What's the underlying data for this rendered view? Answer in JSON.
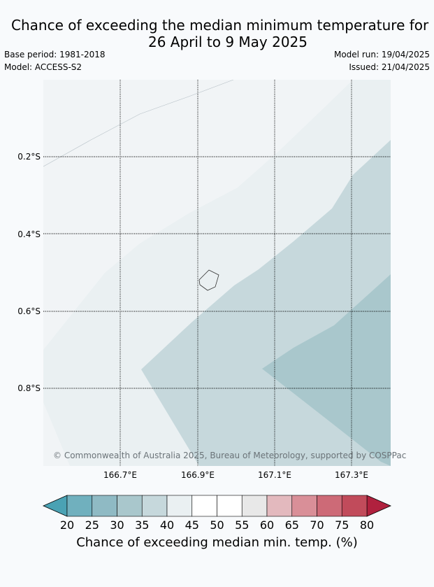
{
  "title": {
    "line1": "Chance of exceeding the median minimum temperature for",
    "line2": "26 April to 9 May 2025"
  },
  "meta_left": {
    "base_period": "Base period: 1981-2018",
    "model": "Model: ACCESS-S2"
  },
  "meta_right": {
    "model_run": "Model run: 19/04/2025",
    "issued": "Issued: 21/04/2025"
  },
  "copyright": "© Commonwealth of Australia 2025, Bureau of Meteorology, supported by COSPPac",
  "map": {
    "lon_ticks": [
      "166.7°E",
      "166.9°E",
      "167.1°E",
      "167.3°E"
    ],
    "lat_ticks": [
      "0.2°S",
      "0.4°S",
      "0.6°S",
      "0.8°S"
    ],
    "zones": [
      {
        "range": "40-45",
        "color": "#eaf0f2"
      },
      {
        "range": "35-40",
        "color": "#c6d8dc"
      },
      {
        "range": "30-35",
        "color": "#a9c7cc"
      }
    ]
  },
  "colorbar": {
    "ticks": [
      "20",
      "25",
      "30",
      "35",
      "40",
      "45",
      "50",
      "55",
      "60",
      "65",
      "70",
      "75",
      "80"
    ],
    "low_extend_color": "#4aa2b4",
    "high_extend_color": "#b0213e",
    "colors": [
      "#70b0be",
      "#8fbac4",
      "#a9c7cc",
      "#c6d8dc",
      "#eaf0f2",
      "#ffffff",
      "#ffffff",
      "#e8e8e8",
      "#e3b9be",
      "#d98f98",
      "#cd6a77",
      "#c14b5b"
    ],
    "label": "Chance of exceeding median min. temp. (%)"
  }
}
